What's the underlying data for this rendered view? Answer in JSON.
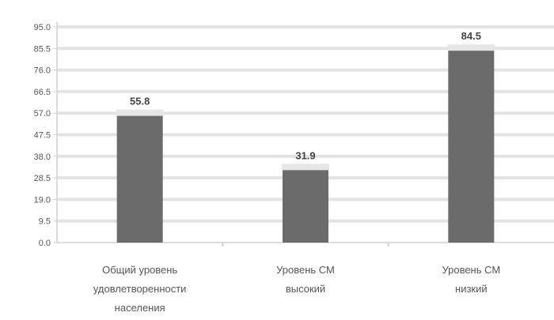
{
  "chart_data": {
    "type": "bar",
    "categories": [
      [
        "Общий уровень",
        "удовлетворенности",
        "населения"
      ],
      [
        "Уровень СМ",
        "высокий"
      ],
      [
        "Уровень СМ",
        "низкий"
      ]
    ],
    "values": [
      55.8,
      31.9,
      84.5
    ],
    "data_labels": [
      "55.8",
      "31.9",
      "84.5"
    ],
    "ylim": [
      0,
      95
    ],
    "yticks": [
      0,
      9.5,
      19,
      28.5,
      38,
      47.5,
      57,
      66.5,
      76,
      85.5,
      95
    ],
    "ytick_labels": [
      "0.0",
      "9.5",
      "19.0",
      "28.5",
      "38.0",
      "47.5",
      "57.0",
      "66.5",
      "76.0",
      "85.5",
      "95.0"
    ],
    "grid": true,
    "legend": "none",
    "bar_color": "#6b6b6b",
    "grid_color": "#e3e3e3"
  }
}
